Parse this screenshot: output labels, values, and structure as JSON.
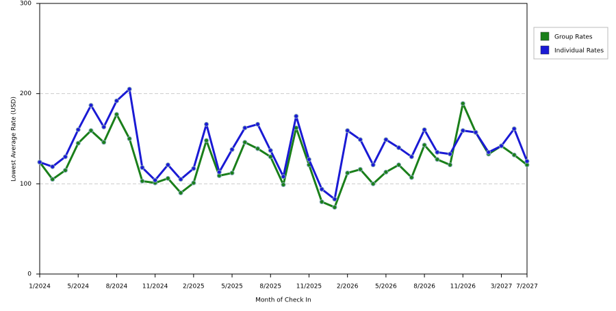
{
  "chart_data": {
    "type": "line",
    "x_label": "Month of Check In",
    "y_label": "Lowest Average Rate (USD)",
    "categories": [
      "1/2024",
      null,
      null,
      "5/2024",
      null,
      null,
      "8/2024",
      null,
      null,
      "11/2024",
      null,
      null,
      "2/2025",
      null,
      null,
      "5/2025",
      null,
      null,
      "8/2025",
      null,
      null,
      "11/2025",
      null,
      null,
      "2/2026",
      null,
      null,
      "5/2026",
      null,
      null,
      "8/2026",
      null,
      null,
      "11/2026",
      null,
      null,
      "3/2027",
      null,
      "7/2027"
    ],
    "series": [
      {
        "name": "Group Rates",
        "color": "#1a7f1a",
        "values": [
          124,
          105,
          115,
          145,
          159,
          146,
          177,
          150,
          103,
          101,
          106,
          90,
          101,
          148,
          109,
          112,
          146,
          139,
          130,
          99,
          162,
          121,
          80,
          74,
          112,
          116,
          100,
          113,
          121,
          107,
          143,
          127,
          121,
          189,
          157,
          133,
          142,
          132,
          121
        ]
      },
      {
        "name": "Individual Rates",
        "color": "#1a1ad4",
        "values": [
          124,
          119,
          130,
          160,
          187,
          163,
          192,
          205,
          118,
          104,
          121,
          105,
          117,
          166,
          113,
          138,
          162,
          166,
          137,
          108,
          175,
          127,
          94,
          83,
          159,
          149,
          121,
          149,
          140,
          130,
          160,
          135,
          133,
          159,
          157,
          135,
          142,
          161,
          125
        ]
      }
    ],
    "ylim": [
      0,
      300
    ],
    "yticks": [
      0,
      100,
      200,
      300
    ],
    "grid": true,
    "legend": "right"
  }
}
